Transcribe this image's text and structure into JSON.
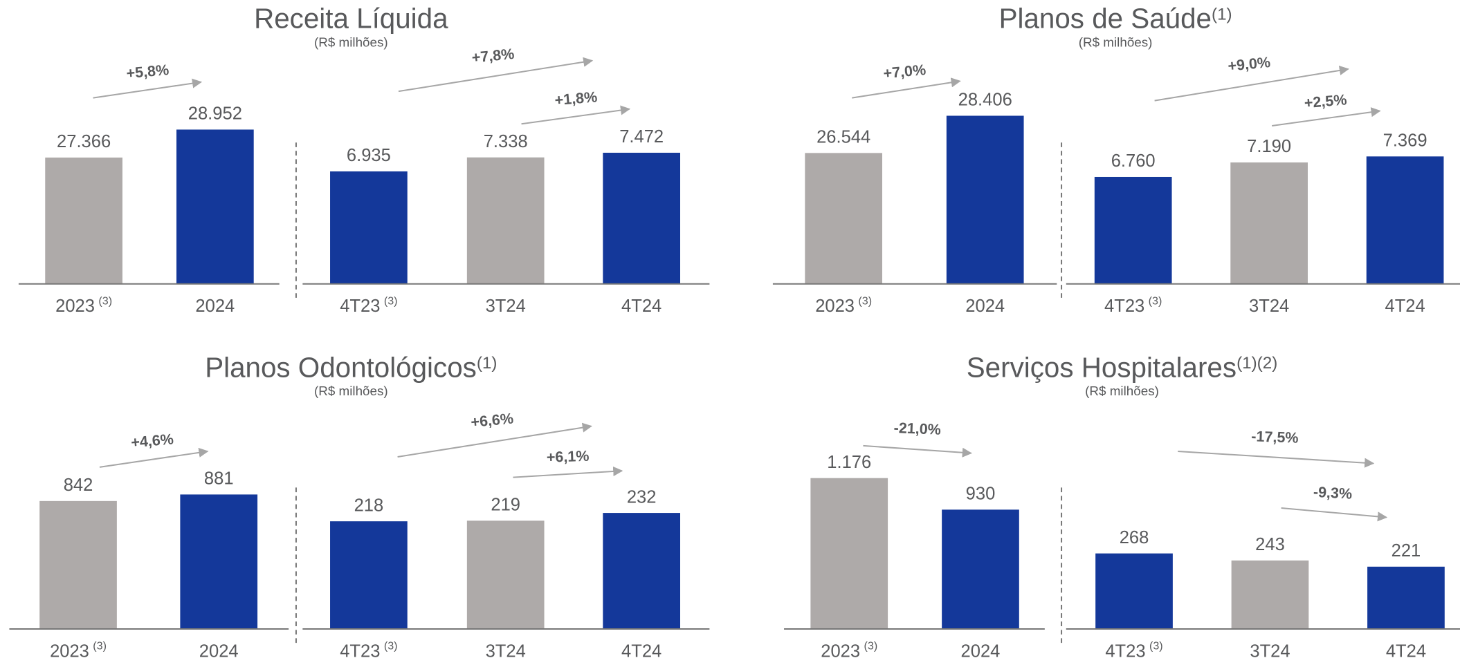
{
  "chart_data": [
    {
      "type": "bar",
      "title": "Receita Líquida",
      "title_note": null,
      "subtitle": "(R$ milhões)",
      "groups": [
        {
          "categories": [
            "2023",
            "2024"
          ],
          "category_notes": [
            "(3)",
            null
          ],
          "values": [
            27366,
            28952
          ],
          "value_labels": [
            "27.366",
            "28.952"
          ],
          "colors": [
            "#aeaaa9",
            "#14389a"
          ],
          "ylim": [
            20200,
            30750
          ],
          "annotations": [
            "+5,8%"
          ]
        },
        {
          "categories": [
            "4T23",
            "3T24",
            "4T24"
          ],
          "category_notes": [
            "(3)",
            null,
            null
          ],
          "values": [
            6935,
            7338,
            7472
          ],
          "value_labels": [
            "6.935",
            "7.338",
            "7.472"
          ],
          "colors": [
            "#14389a",
            "#aeaaa9",
            "#14389a"
          ],
          "ylim": [
            3700,
            9050
          ],
          "annotations": [
            "+7,8%",
            "+1,8%"
          ]
        }
      ]
    },
    {
      "type": "bar",
      "title": "Planos de Saúde",
      "title_note": "(1)",
      "subtitle": "(R$ milhões)",
      "groups": [
        {
          "categories": [
            "2023",
            "2024"
          ],
          "category_notes": [
            "(3)",
            null
          ],
          "values": [
            26544,
            28406
          ],
          "value_labels": [
            "26.544",
            "28.406"
          ],
          "colors": [
            "#aeaaa9",
            "#14389a"
          ],
          "ylim": [
            20000,
            29300
          ],
          "annotations": [
            "+7,0%"
          ]
        },
        {
          "categories": [
            "4T23",
            "3T24",
            "4T24"
          ],
          "category_notes": [
            "(3)",
            null,
            null
          ],
          "values": [
            6760,
            7190,
            7369
          ],
          "value_labels": [
            "6.760",
            "7.190",
            "7.369"
          ],
          "colors": [
            "#14389a",
            "#aeaaa9",
            "#14389a"
          ],
          "ylim": [
            3580,
            9110
          ],
          "annotations": [
            "+9,0%",
            "+2,5%"
          ]
        }
      ]
    },
    {
      "type": "bar",
      "title": "Planos Odontológicos",
      "title_note": "(1)",
      "subtitle": "(R$ milhões)",
      "groups": [
        {
          "categories": [
            "2023",
            "2024"
          ],
          "category_notes": [
            "(3)",
            null
          ],
          "values": [
            842,
            881
          ],
          "colors": [
            "#aeaaa9",
            "#14389a"
          ],
          "ylim": [
            75,
            1190
          ],
          "annotations": [
            "+4,6%"
          ]
        },
        {
          "categories": [
            "4T23",
            "3T24",
            "4T24"
          ],
          "category_notes": [
            "(3)",
            null,
            null
          ],
          "values": [
            218,
            219,
            232
          ],
          "colors": [
            "#14389a",
            "#aeaaa9",
            "#14389a"
          ],
          "ylim": [
            38,
            349
          ],
          "annotations": [
            "+6,6%",
            "+6,1%"
          ]
        }
      ]
    },
    {
      "type": "bar",
      "title": "Serviços Hospitalares",
      "title_note": "(1)(2)",
      "subtitle": "(R$ milhões)",
      "groups": [
        {
          "categories": [
            "2023",
            "2024"
          ],
          "category_notes": [
            "(3)",
            null
          ],
          "values": [
            1176,
            930
          ],
          "value_labels": [
            "1.176",
            "930"
          ],
          "colors": [
            "#aeaaa9",
            "#14389a"
          ],
          "ylim": [
            0,
            1450
          ],
          "annotations": [
            "-21,0%"
          ]
        },
        {
          "categories": [
            "4T23",
            "3T24",
            "4T24"
          ],
          "category_notes": [
            "(3)",
            null,
            null
          ],
          "values": [
            268,
            243,
            221
          ],
          "colors": [
            "#14389a",
            "#aeaaa9",
            "#14389a"
          ],
          "ylim": [
            0,
            660
          ],
          "annotations": [
            "-17,5%",
            "-9,3%"
          ]
        }
      ]
    }
  ]
}
